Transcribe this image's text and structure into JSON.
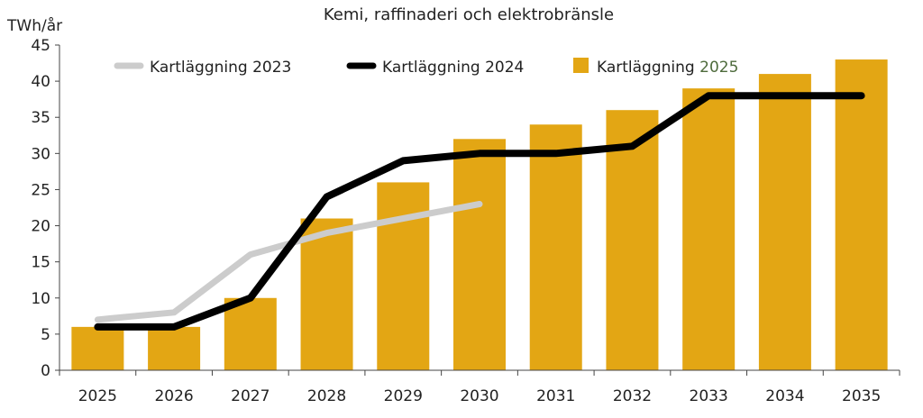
{
  "chart_data": {
    "type": "bar",
    "title": "Kemi, raffinaderi och elektrobränsle",
    "ylabel": "TWh/år",
    "xlabel": "",
    "ylim": [
      0,
      45
    ],
    "yticks": [
      0,
      5,
      10,
      15,
      20,
      25,
      30,
      35,
      40,
      45
    ],
    "grid": false,
    "legend_position": "top",
    "categories": [
      "2025",
      "2026",
      "2027",
      "2028",
      "2029",
      "2030",
      "2031",
      "2032",
      "2033",
      "2034",
      "2035"
    ],
    "bar_series": {
      "name": "Kartläggning 2025",
      "color": "#E3A614",
      "values": [
        6,
        6,
        10,
        21,
        26,
        32,
        34,
        36,
        39,
        41,
        43
      ]
    },
    "line_series": [
      {
        "name": "Kartläggning 2023",
        "color": "#CCCCCC",
        "values": [
          7,
          8,
          16,
          19,
          21,
          23,
          null,
          null,
          null,
          null,
          null
        ]
      },
      {
        "name": "Kartläggning 2024",
        "color": "#000000",
        "values": [
          6,
          6,
          10,
          24,
          29,
          30,
          30,
          31,
          38,
          38,
          38
        ]
      }
    ],
    "legend": {
      "line_2023_label": "Kartläggning 2023",
      "line_2024_label": "Kartläggning 2024",
      "bar_label_prefix": "Kartläggning ",
      "bar_label_year": "2025",
      "bar_label_year_color": "#4E6B3C"
    }
  }
}
